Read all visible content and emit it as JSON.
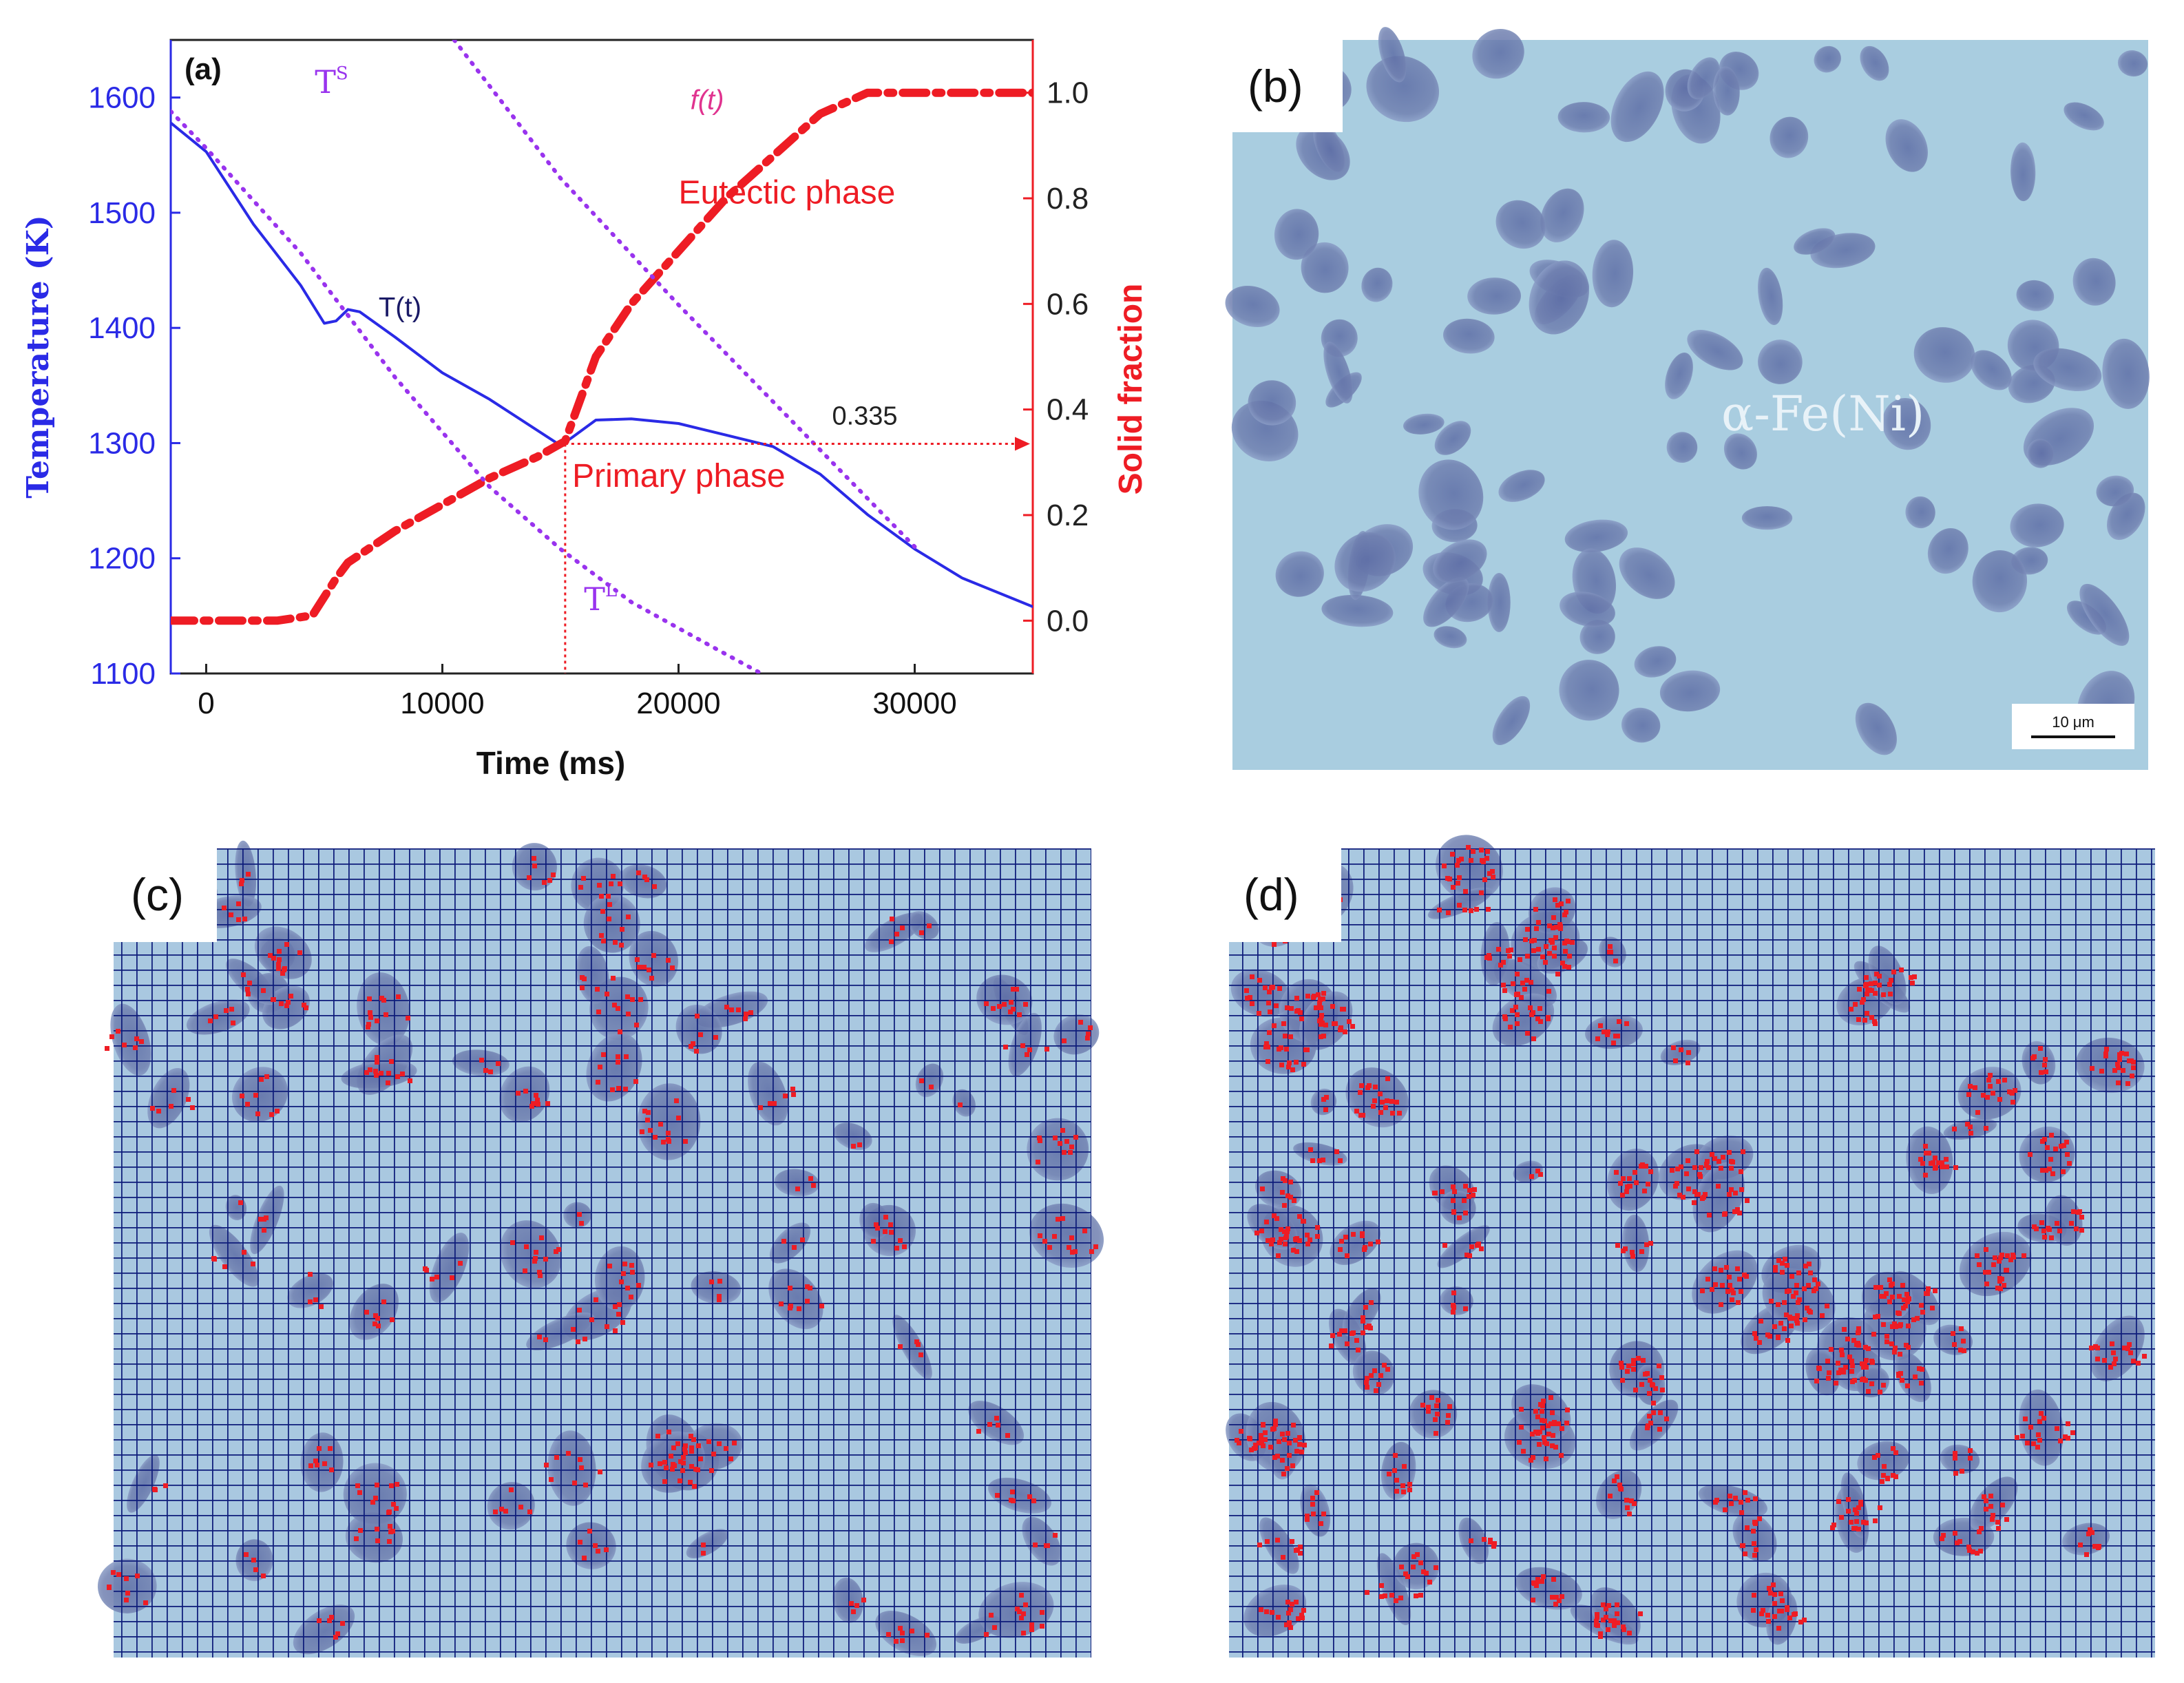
{
  "panels": {
    "a": {
      "label": "(a)"
    },
    "b": {
      "label": "(b)",
      "phase_label": "α-Fe(Ni)",
      "scale_bar": "10 μm"
    },
    "c": {
      "label": "(c)"
    },
    "d": {
      "label": "(d)"
    }
  },
  "chart_data": {
    "type": "line",
    "title": "",
    "xlabel": "Time (ms)",
    "ylabel_left": "Temperature (K)",
    "ylabel_right": "Solid fraction",
    "xlim": [
      -1500,
      35000
    ],
    "ylim_left": [
      1100,
      1650
    ],
    "ylim_right": [
      -0.1,
      1.1
    ],
    "x_ticks": [
      0,
      10000,
      20000,
      30000
    ],
    "y_left_ticks": [
      1100,
      1200,
      1300,
      1400,
      1500,
      1600
    ],
    "y_right_ticks": [
      0.0,
      0.2,
      0.4,
      0.6,
      0.8,
      1.0
    ],
    "y_right_tick_labels": [
      "0.0",
      "0.2",
      "0.4",
      "0.6",
      "0.8",
      "1.0"
    ],
    "colors": {
      "temperature": "#2a2ae6",
      "fraction": "#ee1c24",
      "liquidus_solidus": "#9933ee",
      "f_label": "#e0338f"
    },
    "series": [
      {
        "name": "T(t)",
        "axis": "left",
        "style": "solid",
        "x": [
          -1500,
          0,
          2000,
          4000,
          5000,
          5500,
          6000,
          6500,
          8000,
          10000,
          12000,
          15000,
          15500,
          16500,
          18000,
          20000,
          22000,
          24000,
          26000,
          28000,
          30000,
          32000,
          35000
        ],
        "y": [
          1578,
          1553,
          1490,
          1437,
          1404,
          1406,
          1416,
          1414,
          1392,
          1361,
          1338,
          1298,
          1305,
          1320,
          1321,
          1317,
          1307,
          1297,
          1273,
          1238,
          1208,
          1183,
          1158
        ]
      },
      {
        "name": "f(t)",
        "axis": "right",
        "style": "dashdot",
        "x": [
          -1500,
          0,
          3000,
          4500,
          5500,
          6000,
          8000,
          10000,
          12000,
          14000,
          15200,
          16500,
          18000,
          20000,
          22000,
          24000,
          26000,
          27000,
          28000,
          30000,
          32000,
          35000
        ],
        "y": [
          0.0,
          0.0,
          0.0,
          0.01,
          0.08,
          0.11,
          0.17,
          0.22,
          0.27,
          0.31,
          0.34,
          0.5,
          0.6,
          0.7,
          0.8,
          0.88,
          0.96,
          0.98,
          1.0,
          1.0,
          1.0,
          1.0
        ]
      },
      {
        "name": "T^S",
        "axis": "left",
        "style": "dotted",
        "x": [
          10500,
          15000,
          20000,
          25000,
          30000
        ],
        "y": [
          1650,
          1530,
          1420,
          1315,
          1210
        ]
      },
      {
        "name": "T^L",
        "axis": "left",
        "style": "dotted",
        "x": [
          -1500,
          0,
          4000,
          8000,
          12000,
          15000,
          18000,
          21000,
          23500
        ],
        "y": [
          1588,
          1556,
          1465,
          1357,
          1262,
          1208,
          1162,
          1128,
          1100
        ]
      }
    ],
    "annotations": [
      {
        "text": "T",
        "sup": "S",
        "x": 4600,
        "y": 1604,
        "color": "#9933ee"
      },
      {
        "text": "T",
        "sup": "L",
        "x": 16000,
        "y": 1155,
        "color": "#9933ee"
      },
      {
        "text": "T(t)",
        "x": 7300,
        "y": 1410,
        "color": "#1a1a66"
      },
      {
        "text": "f(t)",
        "x": 20500,
        "y": 1590,
        "color": "#e0338f"
      },
      {
        "text": "Eutectic phase",
        "x": 20000,
        "y": 1508,
        "color": "#ee1c24"
      },
      {
        "text": "Primary phase",
        "x": 15500,
        "y": 1262,
        "color": "#ee1c24"
      },
      {
        "text": "0.335",
        "x": 26500,
        "y": 1316,
        "color": "#222222"
      }
    ],
    "marker_line": {
      "x": 15200,
      "fraction": 0.335
    }
  }
}
